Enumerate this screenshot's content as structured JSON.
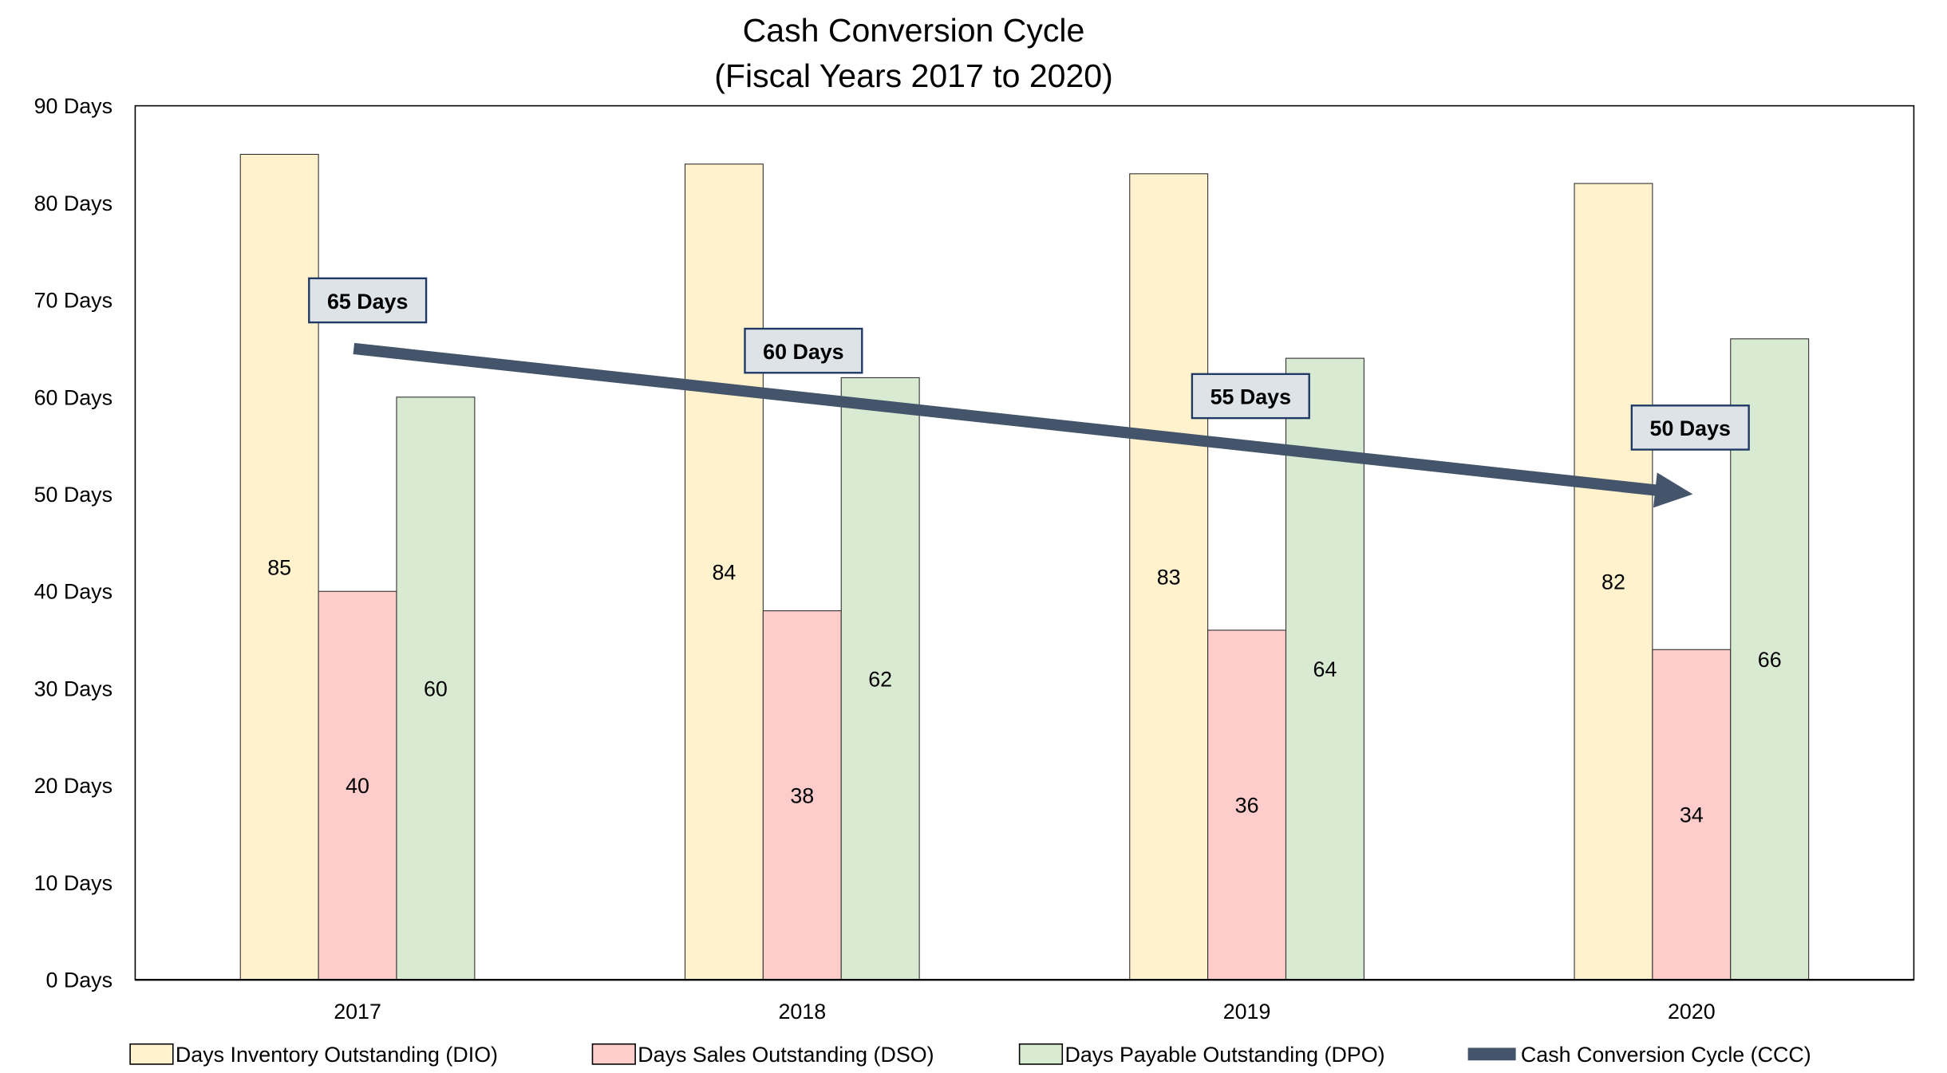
{
  "chart_data": {
    "type": "bar",
    "title": "Cash Conversion Cycle",
    "subtitle": "(Fiscal Years 2017 to 2020)",
    "xlabel": "",
    "ylabel": "",
    "ylim": [
      0,
      90
    ],
    "yticks": [
      "0 Days",
      "10 Days",
      "20 Days",
      "30 Days",
      "40 Days",
      "50 Days",
      "60 Days",
      "70 Days",
      "80 Days",
      "90 Days"
    ],
    "categories": [
      "2017",
      "2018",
      "2019",
      "2020"
    ],
    "grid": false,
    "legend_position": "bottom",
    "series": [
      {
        "name": "Days Inventory Outstanding (DIO)",
        "kind": "bar",
        "color": "#FFF2CC",
        "values": [
          85,
          84,
          83,
          82
        ]
      },
      {
        "name": "Days Sales Outstanding (DSO)",
        "kind": "bar",
        "color": "#FFCCCC",
        "values": [
          40,
          38,
          36,
          34
        ]
      },
      {
        "name": "Days Payable Outstanding (DPO)",
        "kind": "bar",
        "color": "#D9EAD3",
        "values": [
          60,
          62,
          64,
          66
        ]
      },
      {
        "name": "Cash Conversion Cycle (CCC)",
        "kind": "line-arrow",
        "color": "#44546A",
        "values": [
          65,
          60,
          55,
          50
        ],
        "labels": [
          "65 Days",
          "60 Days",
          "55 Days",
          "50 Days"
        ]
      }
    ],
    "ccc_label_fill": "#DEE3E8",
    "ccc_label_border": "#1F3864"
  }
}
